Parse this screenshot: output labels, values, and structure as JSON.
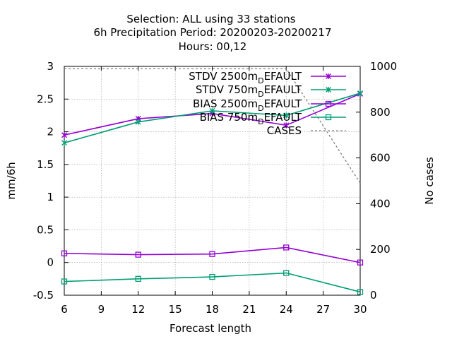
{
  "chart_data": {
    "type": "line",
    "title_lines": [
      "Selection: ALL using    33 stations",
      "6h Precipitation   Period: 20200203-20200217",
      "Hours:  00,12"
    ],
    "xlabel": "Forecast length",
    "ylabel": "mm/6h",
    "y2label": "No cases",
    "xlim": [
      6,
      30
    ],
    "ylim": [
      -0.5,
      3
    ],
    "y2lim": [
      0,
      1000
    ],
    "x_ticks": [
      "6",
      "9",
      "12",
      "15",
      "18",
      "21",
      "24",
      "27",
      "30"
    ],
    "y_ticks": [
      "-0.5",
      "0",
      "0.5",
      "1",
      "1.5",
      "2",
      "2.5",
      "3"
    ],
    "y2_ticks": [
      "0",
      "200",
      "400",
      "600",
      "800",
      "1000"
    ],
    "grid": true,
    "legend_position": "top-right",
    "x": [
      6,
      12,
      18,
      24,
      30
    ],
    "series": [
      {
        "name": "STDV 2500m",
        "name_sub": "D",
        "name_rest": "EFAULT",
        "color": "#9400d3",
        "marker": "x-star",
        "values": [
          1.95,
          2.2,
          2.28,
          2.1,
          2.58
        ],
        "axis": "y1",
        "dash": false
      },
      {
        "name": "STDV 750m",
        "name_sub": "D",
        "name_rest": "EFAULT",
        "color": "#009e73",
        "marker": "x-star",
        "values": [
          1.83,
          2.15,
          2.32,
          2.25,
          2.59
        ],
        "axis": "y1",
        "dash": false
      },
      {
        "name": "BIAS 2500m",
        "name_sub": "D",
        "name_rest": "EFAULT",
        "color": "#9400d3",
        "marker": "square",
        "values": [
          0.14,
          0.12,
          0.13,
          0.23,
          0.0
        ],
        "axis": "y1",
        "dash": false
      },
      {
        "name": "BIAS 750m",
        "name_sub": "D",
        "name_rest": "EFAULT",
        "color": "#009e73",
        "marker": "square",
        "values": [
          -0.29,
          -0.25,
          -0.22,
          -0.16,
          -0.45
        ],
        "axis": "y1",
        "dash": false
      },
      {
        "name": "CASES",
        "name_sub": "",
        "name_rest": "",
        "color": "#808080",
        "marker": "none",
        "values": [
          990,
          990,
          990,
          990,
          490
        ],
        "axis": "y2",
        "dash": true
      }
    ]
  }
}
